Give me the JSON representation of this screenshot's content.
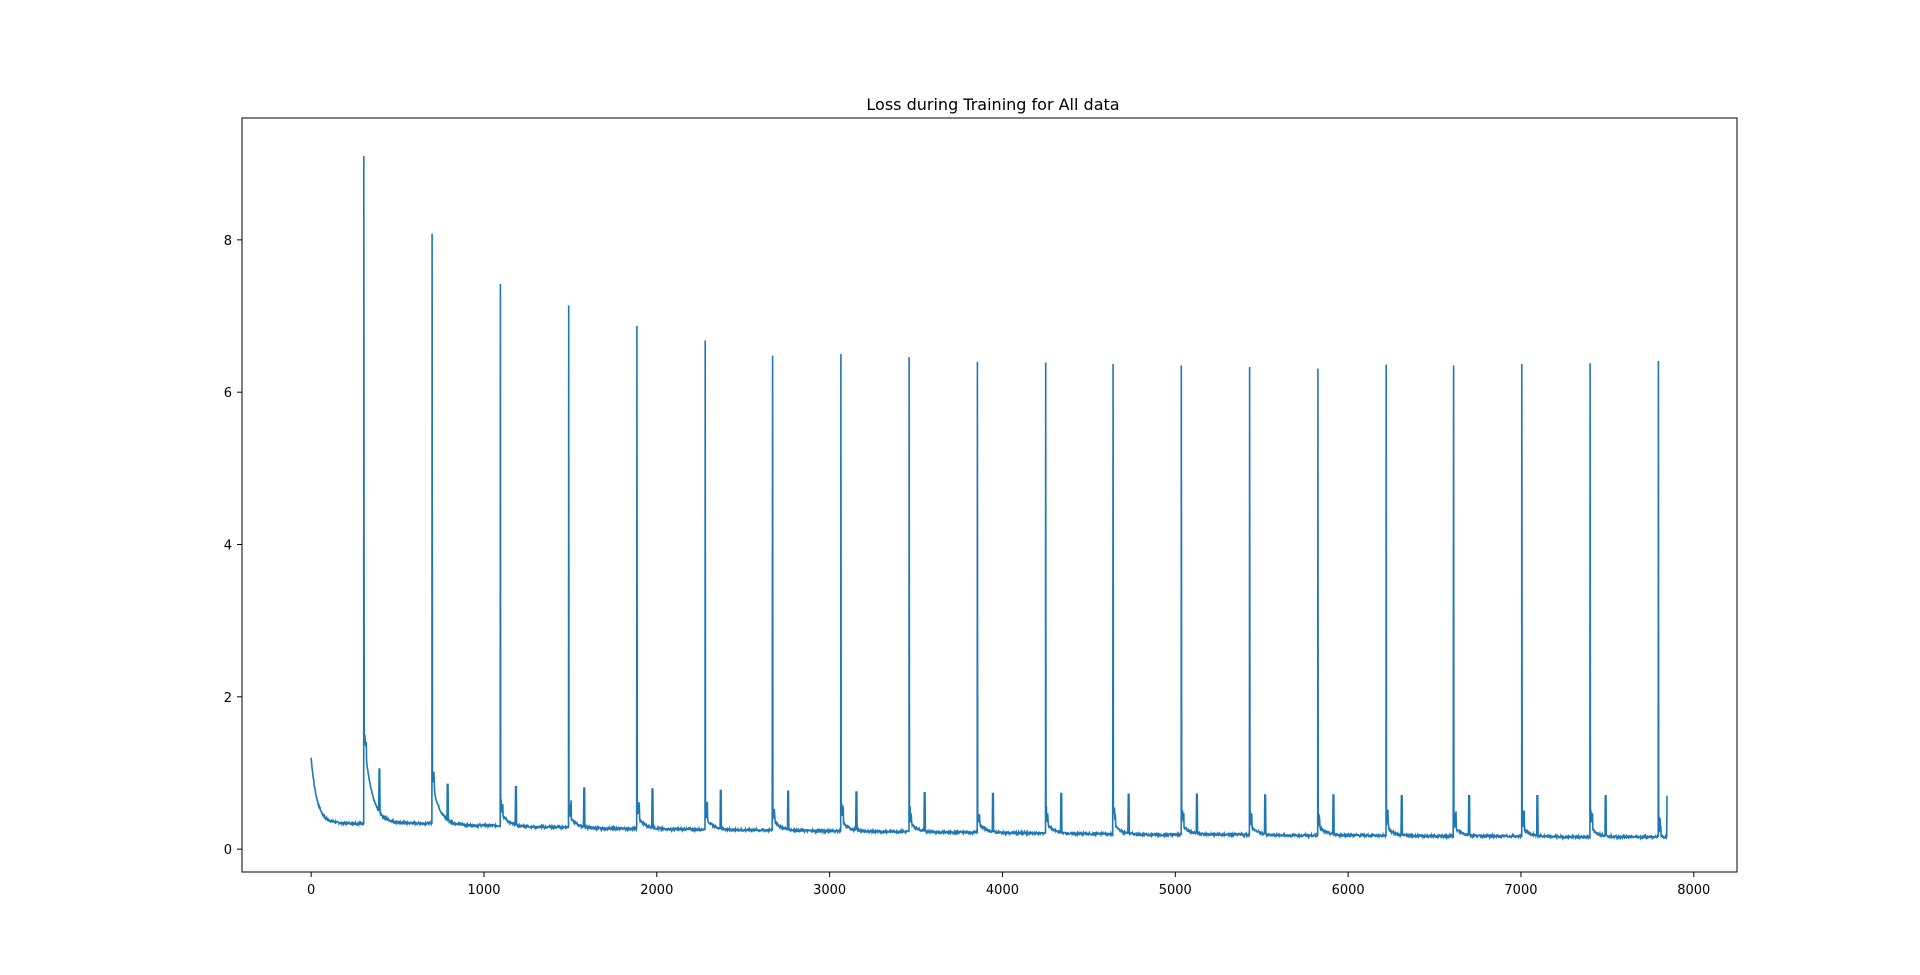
{
  "chart_data": {
    "type": "line",
    "title": "Loss during Training for All data",
    "xlabel": "",
    "ylabel": "",
    "xlim": [
      -400,
      8250
    ],
    "ylim": [
      -0.3,
      9.6
    ],
    "xticks": [
      0,
      1000,
      2000,
      3000,
      4000,
      5000,
      6000,
      7000,
      8000
    ],
    "yticks": [
      0,
      2,
      4,
      6,
      8
    ],
    "grid": false,
    "legend": "none",
    "line_color": "#1f77b4",
    "series": [
      {
        "spike_positions": [
          305,
          700,
          1095,
          1490,
          1885,
          2280,
          2670,
          3065,
          3460,
          3855,
          4250,
          4640,
          5035,
          5430,
          5825,
          6220,
          6610,
          7005,
          7400,
          7795
        ],
        "spike_peaks": [
          9.1,
          8.08,
          7.42,
          7.14,
          6.87,
          6.68,
          6.48,
          6.5,
          6.46,
          6.4,
          6.39,
          6.37,
          6.35,
          6.33,
          6.31,
          6.36,
          6.35,
          6.37,
          6.38,
          6.41
        ],
        "baseline_start": [
          1.2,
          1.5,
          0.9,
          0.5,
          0.45,
          0.44,
          0.42,
          0.4,
          0.38,
          0.37,
          0.36,
          0.35,
          0.34,
          0.33,
          0.32,
          0.31,
          0.3,
          0.3,
          0.29,
          0.29
        ],
        "baseline_end": [
          0.34,
          0.31,
          0.29,
          0.27,
          0.26,
          0.25,
          0.24,
          0.23,
          0.22,
          0.21,
          0.2,
          0.19,
          0.19,
          0.18,
          0.18,
          0.17,
          0.17,
          0.16,
          0.16,
          0.16
        ],
        "secondary_spike_peaks": [
          1.05,
          0.85,
          0.82,
          0.8,
          0.79,
          0.77,
          0.76,
          0.75,
          0.74,
          0.73,
          0.73,
          0.72,
          0.72,
          0.71,
          0.71,
          0.7,
          0.7,
          0.7,
          0.7,
          0.7
        ],
        "x_end": 7845,
        "final_value": 0.7
      }
    ]
  }
}
